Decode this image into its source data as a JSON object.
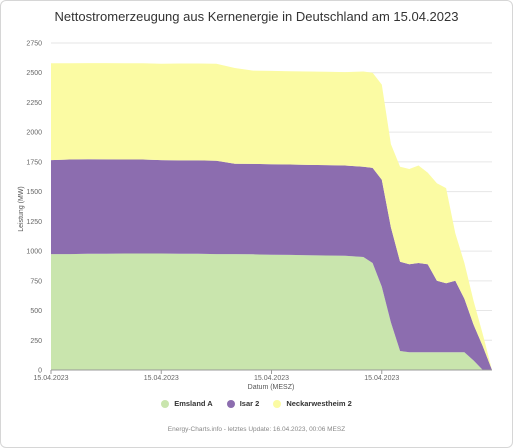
{
  "chart_data": {
    "type": "area",
    "stacked": true,
    "title": "Nettostromerzeugung aus Kernenergie in Deutschland am 15.04.2023",
    "xlabel": "Datum (MESZ)",
    "ylabel": "Leistung (MW)",
    "ylim": [
      0,
      2750
    ],
    "yticks": [
      0,
      250,
      500,
      750,
      1000,
      1250,
      1500,
      1750,
      2000,
      2250,
      2500,
      2750
    ],
    "x_tick_labels": [
      "15.04.2023",
      "15.04.2023",
      "15.04.2023",
      "15.04.2023"
    ],
    "grid": true,
    "legend_position": "bottom",
    "x_hours": [
      0,
      1,
      2,
      3,
      4,
      5,
      6,
      7,
      8,
      9,
      10,
      11,
      12,
      13,
      14,
      15,
      16,
      17,
      17.5,
      18,
      18.5,
      19,
      19.5,
      20,
      20.5,
      21,
      21.5,
      22,
      22.5,
      23,
      23.5,
      24
    ],
    "series": [
      {
        "name": "Emsland A",
        "color": "#c9e5ad",
        "values": [
          975,
          975,
          978,
          978,
          980,
          980,
          980,
          978,
          978,
          975,
          975,
          973,
          970,
          968,
          965,
          963,
          960,
          950,
          900,
          700,
          400,
          160,
          150,
          150,
          150,
          150,
          150,
          150,
          150,
          80,
          0,
          0
        ]
      },
      {
        "name": "Isar 2",
        "color": "#8c6daf",
        "values": [
          790,
          795,
          795,
          793,
          790,
          790,
          785,
          785,
          785,
          785,
          760,
          760,
          760,
          760,
          760,
          760,
          760,
          760,
          800,
          900,
          800,
          750,
          740,
          750,
          740,
          600,
          580,
          600,
          450,
          300,
          200,
          0
        ]
      },
      {
        "name": "Neckarwestheim 2",
        "color": "#fbfba3",
        "values": [
          815,
          810,
          808,
          810,
          810,
          810,
          810,
          815,
          815,
          815,
          805,
          785,
          785,
          785,
          785,
          785,
          785,
          800,
          800,
          800,
          700,
          800,
          800,
          820,
          770,
          820,
          800,
          400,
          300,
          200,
          100,
          0
        ]
      }
    ]
  },
  "credits": "Energy-Charts.info - letztes Update: 16.04.2023, 00:06 MESZ"
}
